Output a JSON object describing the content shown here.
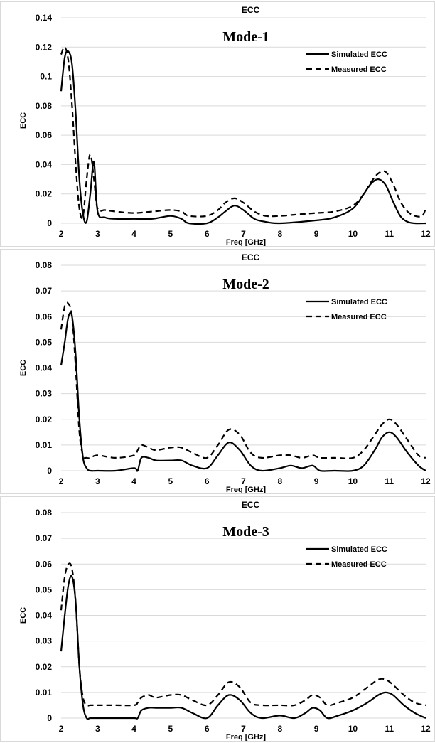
{
  "chart_data": [
    {
      "type": "line",
      "title": "ECC",
      "annotation": "Mode-1",
      "xlabel": "Freq [GHz]",
      "ylabel": "ECC",
      "xlim": [
        2,
        12
      ],
      "ylim": [
        0,
        0.14
      ],
      "xticks": [
        2,
        3,
        4,
        5,
        6,
        7,
        8,
        9,
        10,
        11,
        12
      ],
      "yticks": [
        "0",
        "0.02",
        "0.04",
        "0.06",
        "0.08",
        "0.1",
        "0.12",
        "0.14"
      ],
      "ytick_values": [
        0,
        0.02,
        0.04,
        0.06,
        0.08,
        0.1,
        0.12,
        0.14
      ],
      "legend_position": "top-right",
      "grid": "horizontal",
      "series": [
        {
          "name": "Simulated ECC",
          "style": "solid",
          "x": [
            2,
            2.1,
            2.2,
            2.3,
            2.4,
            2.5,
            2.6,
            2.7,
            2.8,
            2.9,
            3.0,
            3.2,
            3.5,
            4.0,
            4.5,
            5.0,
            5.3,
            5.5,
            6.0,
            6.3,
            6.5,
            6.75,
            7.0,
            7.3,
            7.6,
            8.0,
            9.0,
            9.5,
            10.0,
            10.3,
            10.5,
            10.7,
            10.9,
            11.1,
            11.3,
            11.5,
            11.7,
            12.0
          ],
          "y": [
            0.09,
            0.113,
            0.117,
            0.108,
            0.075,
            0.03,
            0.006,
            0.001,
            0.02,
            0.042,
            0.008,
            0.004,
            0.003,
            0.003,
            0.003,
            0.005,
            0.003,
            0.0,
            0.0,
            0.004,
            0.008,
            0.012,
            0.009,
            0.003,
            0.001,
            0.0,
            0.002,
            0.004,
            0.01,
            0.02,
            0.027,
            0.03,
            0.026,
            0.015,
            0.005,
            0.001,
            0.0,
            0.0
          ]
        },
        {
          "name": "Measured ECC",
          "style": "dashed",
          "x": [
            2,
            2.1,
            2.2,
            2.3,
            2.4,
            2.5,
            2.6,
            2.7,
            2.8,
            2.9,
            3.0,
            3.2,
            3.5,
            4.0,
            4.5,
            5.0,
            5.3,
            5.5,
            6.0,
            6.3,
            6.5,
            6.75,
            7.0,
            7.3,
            7.6,
            8.0,
            8.5,
            9.0,
            9.5,
            10.0,
            10.3,
            10.5,
            10.7,
            10.9,
            11.1,
            11.3,
            11.5,
            11.7,
            11.9,
            12.0
          ],
          "y": [
            0.115,
            0.12,
            0.11,
            0.08,
            0.04,
            0.01,
            0.005,
            0.03,
            0.047,
            0.03,
            0.01,
            0.009,
            0.008,
            0.007,
            0.008,
            0.009,
            0.008,
            0.005,
            0.005,
            0.009,
            0.014,
            0.017,
            0.014,
            0.008,
            0.005,
            0.005,
            0.006,
            0.007,
            0.008,
            0.012,
            0.02,
            0.028,
            0.034,
            0.035,
            0.027,
            0.015,
            0.008,
            0.005,
            0.005,
            0.01
          ]
        }
      ]
    },
    {
      "type": "line",
      "title": "ECC",
      "annotation": "Mode-2",
      "xlabel": "Freq [GHz]",
      "ylabel": "ECC",
      "xlim": [
        2,
        12
      ],
      "ylim": [
        0,
        0.08
      ],
      "xticks": [
        2,
        3,
        4,
        5,
        6,
        7,
        8,
        9,
        10,
        11,
        12
      ],
      "yticks": [
        "0",
        "0.01",
        "0.02",
        "0.03",
        "0.04",
        "0.05",
        "0.06",
        "0.07",
        "0.08"
      ],
      "ytick_values": [
        0,
        0.01,
        0.02,
        0.03,
        0.04,
        0.05,
        0.06,
        0.07,
        0.08
      ],
      "legend_position": "top-right",
      "grid": "horizontal",
      "series": [
        {
          "name": "Simulated ECC",
          "style": "solid",
          "x": [
            2,
            2.1,
            2.2,
            2.3,
            2.4,
            2.5,
            2.6,
            2.7,
            2.8,
            3.0,
            3.5,
            4.0,
            4.1,
            4.2,
            4.4,
            4.6,
            5.0,
            5.3,
            5.6,
            6.0,
            6.3,
            6.6,
            6.9,
            7.2,
            7.5,
            8.0,
            8.3,
            8.6,
            8.9,
            9.1,
            9.5,
            10.0,
            10.3,
            10.6,
            10.8,
            11.0,
            11.2,
            11.5,
            11.8,
            12.0
          ],
          "y": [
            0.041,
            0.05,
            0.06,
            0.06,
            0.045,
            0.02,
            0.005,
            0.001,
            0.0,
            0.0,
            0.0,
            0.001,
            0.0,
            0.005,
            0.005,
            0.004,
            0.004,
            0.004,
            0.002,
            0.001,
            0.006,
            0.011,
            0.008,
            0.002,
            0.0,
            0.001,
            0.002,
            0.001,
            0.002,
            0.0,
            0.0,
            0.0,
            0.002,
            0.008,
            0.013,
            0.015,
            0.013,
            0.007,
            0.002,
            0.0
          ]
        },
        {
          "name": "Measured ECC",
          "style": "dashed",
          "x": [
            2,
            2.1,
            2.2,
            2.3,
            2.4,
            2.5,
            2.6,
            2.7,
            2.8,
            3.0,
            3.5,
            4.0,
            4.1,
            4.2,
            4.4,
            4.6,
            5.0,
            5.3,
            5.6,
            6.0,
            6.3,
            6.6,
            6.9,
            7.2,
            7.5,
            8.0,
            8.3,
            8.6,
            8.9,
            9.1,
            9.5,
            10.0,
            10.3,
            10.6,
            10.8,
            11.0,
            11.2,
            11.5,
            11.8,
            12.0
          ],
          "y": [
            0.055,
            0.064,
            0.065,
            0.06,
            0.04,
            0.015,
            0.006,
            0.005,
            0.005,
            0.006,
            0.005,
            0.006,
            0.008,
            0.01,
            0.009,
            0.008,
            0.009,
            0.009,
            0.007,
            0.005,
            0.01,
            0.016,
            0.014,
            0.007,
            0.005,
            0.006,
            0.006,
            0.005,
            0.006,
            0.005,
            0.005,
            0.005,
            0.008,
            0.014,
            0.018,
            0.02,
            0.018,
            0.012,
            0.006,
            0.005
          ]
        }
      ]
    },
    {
      "type": "line",
      "title": "ECC",
      "annotation": "Mode-3",
      "xlabel": "Freq [GHz]",
      "ylabel": "ECC",
      "xlim": [
        2,
        12
      ],
      "ylim": [
        0,
        0.08
      ],
      "xticks": [
        2,
        3,
        4,
        5,
        6,
        7,
        8,
        9,
        10,
        11,
        12
      ],
      "yticks": [
        "0",
        "0.01",
        "0.02",
        "0.03",
        "0.04",
        "0.05",
        "0.06",
        "0.07",
        "0.08"
      ],
      "ytick_values": [
        0,
        0.01,
        0.02,
        0.03,
        0.04,
        0.05,
        0.06,
        0.07,
        0.08
      ],
      "legend_position": "top-right",
      "grid": "horizontal",
      "series": [
        {
          "name": "Simulated ECC",
          "style": "solid",
          "x": [
            2,
            2.1,
            2.2,
            2.3,
            2.4,
            2.5,
            2.6,
            2.7,
            2.8,
            3.0,
            3.5,
            4.0,
            4.1,
            4.2,
            4.4,
            4.6,
            5.0,
            5.3,
            5.6,
            6.0,
            6.3,
            6.6,
            6.9,
            7.2,
            7.5,
            8.0,
            8.4,
            8.7,
            8.9,
            9.1,
            9.3,
            9.6,
            10.0,
            10.4,
            10.7,
            10.9,
            11.1,
            11.4,
            11.7,
            12.0
          ],
          "y": [
            0.026,
            0.04,
            0.052,
            0.055,
            0.045,
            0.02,
            0.005,
            0.0,
            0.0,
            0.0,
            0.0,
            0.0,
            0.0,
            0.003,
            0.004,
            0.004,
            0.004,
            0.004,
            0.002,
            0.0,
            0.005,
            0.009,
            0.007,
            0.002,
            0.0,
            0.001,
            0.0,
            0.002,
            0.004,
            0.003,
            0.0,
            0.001,
            0.003,
            0.006,
            0.009,
            0.01,
            0.009,
            0.005,
            0.002,
            0.0
          ]
        },
        {
          "name": "Measured ECC",
          "style": "dashed",
          "x": [
            2,
            2.1,
            2.2,
            2.3,
            2.4,
            2.5,
            2.6,
            2.7,
            2.8,
            3.0,
            3.5,
            4.0,
            4.1,
            4.2,
            4.4,
            4.6,
            5.0,
            5.3,
            5.6,
            6.0,
            6.3,
            6.6,
            6.9,
            7.2,
            7.5,
            8.0,
            8.4,
            8.7,
            8.9,
            9.1,
            9.3,
            9.6,
            10.0,
            10.4,
            10.7,
            10.9,
            11.1,
            11.4,
            11.7,
            12.0
          ],
          "y": [
            0.042,
            0.055,
            0.06,
            0.058,
            0.045,
            0.02,
            0.008,
            0.005,
            0.005,
            0.005,
            0.005,
            0.005,
            0.006,
            0.008,
            0.009,
            0.008,
            0.009,
            0.009,
            0.007,
            0.005,
            0.009,
            0.014,
            0.012,
            0.006,
            0.005,
            0.005,
            0.005,
            0.007,
            0.009,
            0.008,
            0.005,
            0.006,
            0.008,
            0.012,
            0.015,
            0.015,
            0.013,
            0.009,
            0.006,
            0.005
          ]
        }
      ]
    }
  ]
}
